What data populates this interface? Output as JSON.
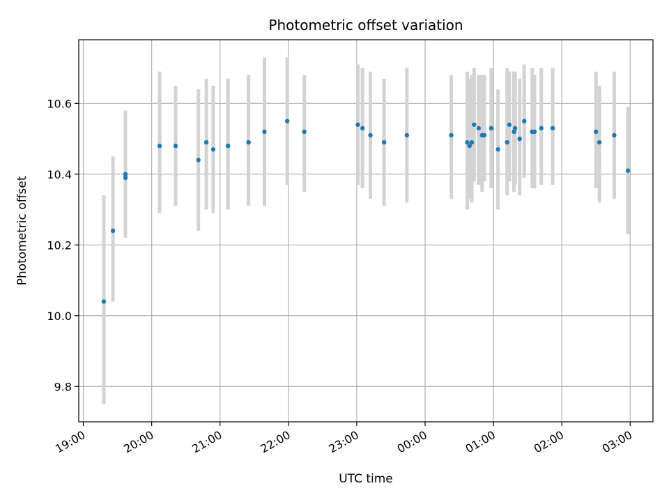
{
  "chart_data": {
    "type": "scatter",
    "title": "Photometric offset variation",
    "xlabel": "UTC time",
    "ylabel": "Photometric offset",
    "x_ticks": [
      "19:00",
      "20:00",
      "21:00",
      "22:00",
      "23:00",
      "00:00",
      "01:00",
      "02:00",
      "03:00"
    ],
    "y_ticks": [
      "9.8",
      "10.0",
      "10.2",
      "10.4",
      "10.6"
    ],
    "x_tick_hours": [
      19,
      20,
      21,
      22,
      23,
      24,
      25,
      26,
      27
    ],
    "y_tick_values": [
      9.8,
      10.0,
      10.2,
      10.4,
      10.6
    ],
    "xlim": [
      "18:56",
      "03:20"
    ],
    "ylim": [
      9.7,
      10.78
    ],
    "grid": true,
    "marker_color": "#1f77b4",
    "errorbar_color": "#d3d3d3",
    "series": [
      {
        "x": [
          "19:18",
          "19:26",
          "19:37",
          "19:37",
          "20:07",
          "20:21",
          "20:41",
          "20:48",
          "20:54",
          "21:07",
          "21:07",
          "21:25",
          "21:25",
          "21:39",
          "21:59",
          "22:14",
          "23:01",
          "23:05",
          "23:12",
          "23:24",
          "23:44",
          "00:23",
          "00:37",
          "00:39",
          "00:41",
          "00:43",
          "00:47",
          "00:50",
          "00:52",
          "00:58",
          "01:04",
          "01:12",
          "01:14",
          "01:18",
          "01:19",
          "01:23",
          "01:27",
          "01:34",
          "01:36",
          "01:42",
          "01:52",
          "02:30",
          "02:33",
          "02:46",
          "02:58"
        ],
        "y": [
          10.04,
          10.24,
          10.39,
          10.4,
          10.48,
          10.48,
          10.44,
          10.49,
          10.47,
          10.48,
          10.48,
          10.49,
          10.49,
          10.52,
          10.55,
          10.52,
          10.54,
          10.53,
          10.51,
          10.49,
          10.51,
          10.51,
          10.49,
          10.48,
          10.49,
          10.54,
          10.53,
          10.51,
          10.51,
          10.53,
          10.47,
          10.49,
          10.54,
          10.52,
          10.53,
          10.5,
          10.55,
          10.52,
          10.52,
          10.53,
          10.53,
          10.52,
          10.49,
          10.51,
          10.41
        ],
        "y_low": [
          9.75,
          10.04,
          10.22,
          10.23,
          10.29,
          10.31,
          10.24,
          10.3,
          10.29,
          10.3,
          10.3,
          10.31,
          10.31,
          10.31,
          10.37,
          10.35,
          10.37,
          10.36,
          10.33,
          10.31,
          10.32,
          10.33,
          10.3,
          10.33,
          10.32,
          10.38,
          10.37,
          10.35,
          10.38,
          10.36,
          10.3,
          10.34,
          10.38,
          10.35,
          10.37,
          10.34,
          10.39,
          10.36,
          10.36,
          10.37,
          10.37,
          10.36,
          10.32,
          10.33,
          10.23
        ],
        "y_high": [
          10.34,
          10.45,
          10.56,
          10.58,
          10.69,
          10.65,
          10.64,
          10.67,
          10.65,
          10.67,
          10.67,
          10.68,
          10.68,
          10.73,
          10.73,
          10.68,
          10.71,
          10.7,
          10.69,
          10.67,
          10.7,
          10.68,
          10.69,
          10.67,
          10.68,
          10.7,
          10.68,
          10.68,
          10.68,
          10.7,
          10.64,
          10.7,
          10.69,
          10.69,
          10.69,
          10.67,
          10.71,
          10.7,
          10.68,
          10.7,
          10.7,
          10.69,
          10.65,
          10.69,
          10.59
        ]
      }
    ]
  }
}
